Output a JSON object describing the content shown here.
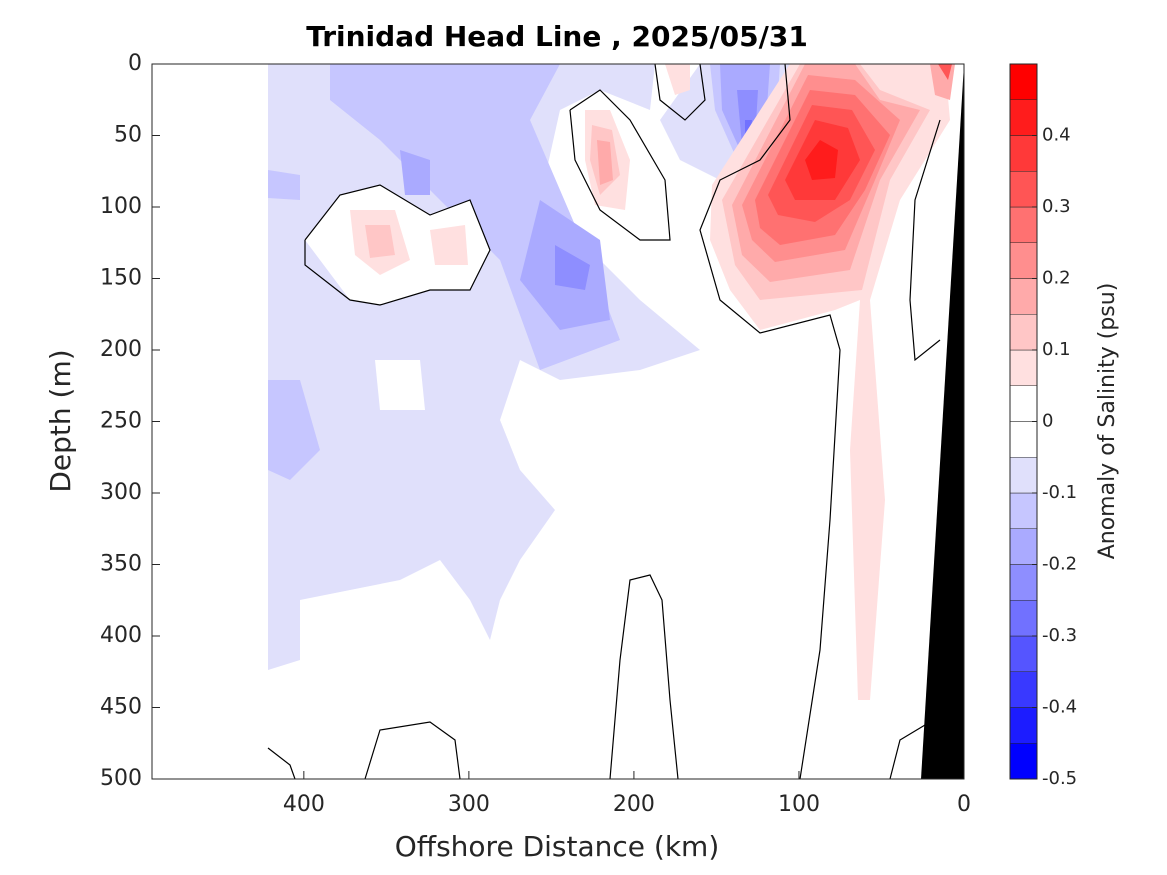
{
  "chart_data": {
    "type": "contourf",
    "title": "Trinidad Head Line , 2025/05/31",
    "x_label": "Offshore Distance (km)",
    "y_label": "Depth (m)",
    "colorbar_label": "Anomaly of Salinity (psu)",
    "xlim": [
      492,
      0
    ],
    "xticks": [
      400,
      300,
      200,
      100,
      0
    ],
    "ylim": [
      0,
      500
    ],
    "yticks": [
      0,
      50,
      100,
      150,
      200,
      250,
      300,
      350,
      400,
      450,
      500
    ],
    "levels": [
      -0.5,
      -0.45,
      -0.4,
      -0.35,
      -0.3,
      -0.25,
      -0.2,
      -0.15,
      -0.1,
      -0.05,
      0,
      0.05,
      0.1,
      0.15,
      0.2,
      0.25,
      0.3,
      0.35,
      0.4,
      0.45,
      0.5
    ],
    "colors": [
      "#0000ff",
      "#1c1cff",
      "#3939ff",
      "#5555ff",
      "#7171ff",
      "#8e8eff",
      "#aaaaff",
      "#c6c6ff",
      "#e0e0fb",
      "#ffffff",
      "#ffffff",
      "#ffe0e0",
      "#ffc6c6",
      "#ffaaaa",
      "#ff8e8e",
      "#ff7171",
      "#ff5555",
      "#ff3939",
      "#ff1c1c",
      "#ff0000"
    ],
    "cticks": [
      -0.5,
      -0.4,
      -0.3,
      -0.2,
      -0.1,
      0,
      0.1,
      0.2,
      0.3,
      0.4
    ]
  }
}
